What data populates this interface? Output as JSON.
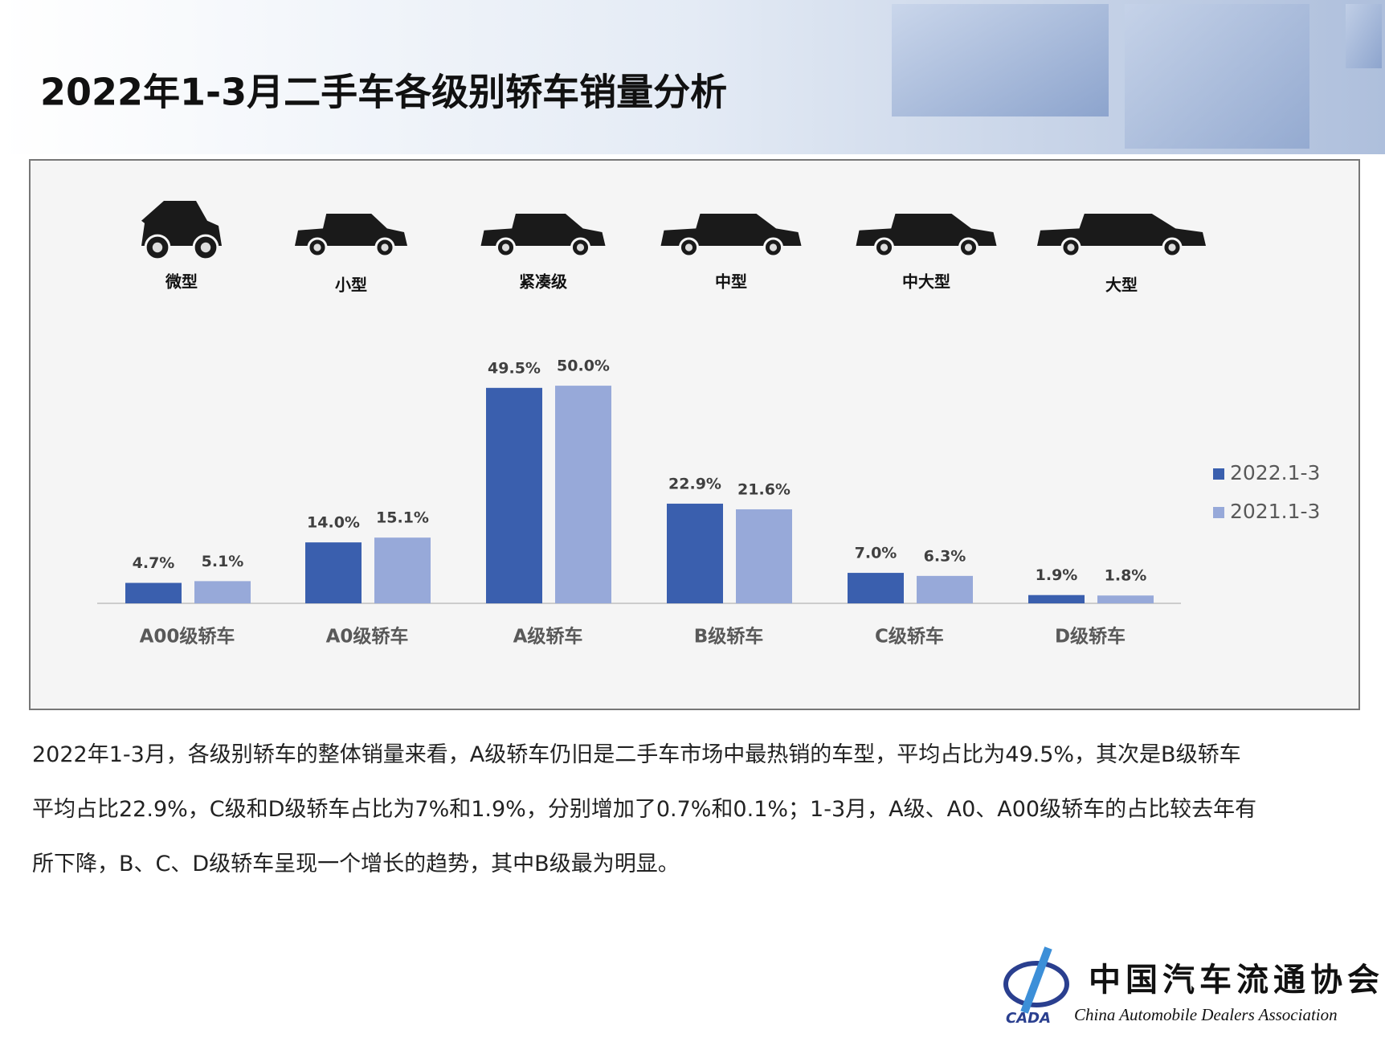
{
  "header": {
    "title": "2022年1-3月二手车各级别轿车销量分析"
  },
  "car_types": [
    "微型",
    "小型",
    "紧凑级",
    "中型",
    "中大型",
    "大型"
  ],
  "chart_data": {
    "type": "bar",
    "categories": [
      "A00级轿车",
      "A0级轿车",
      "A级轿车",
      "B级轿车",
      "C级轿车",
      "D级轿车"
    ],
    "series": [
      {
        "name": "2022.1-3",
        "color": "#3a5fae",
        "values": [
          4.7,
          14.0,
          49.5,
          22.9,
          7.0,
          1.9
        ],
        "value_labels": [
          "4.7%",
          "14.0%",
          "49.5%",
          "22.9%",
          "7.0%",
          "1.9%"
        ]
      },
      {
        "name": "2021.1-3",
        "color": "#97a9d9",
        "values": [
          5.1,
          15.1,
          50.0,
          21.6,
          6.3,
          1.8
        ],
        "value_labels": [
          "5.1%",
          "15.1%",
          "50.0%",
          "21.6%",
          "6.3%",
          "1.8%"
        ]
      }
    ],
    "ylim": [
      0,
      55
    ],
    "legend": "right"
  },
  "body_text": [
    "2022年1-3月，各级别轿车的整体销量来看，A级轿车仍旧是二手车市场中最热销的车型，平均占比为49.5%，其次是B级轿车",
    "平均占比22.9%，C级和D级轿车占比为7%和1.9%，分别增加了0.7%和0.1%；1-3月，A级、A0、A00级轿车的占比较去年有",
    "所下降，B、C、D级轿车呈现一个增长的趋势，其中B级最为明显。"
  ],
  "logo": {
    "abbr": "CADA",
    "name_cn": "中国汽车流通协会",
    "name_en": "China Automobile Dealers Association"
  }
}
